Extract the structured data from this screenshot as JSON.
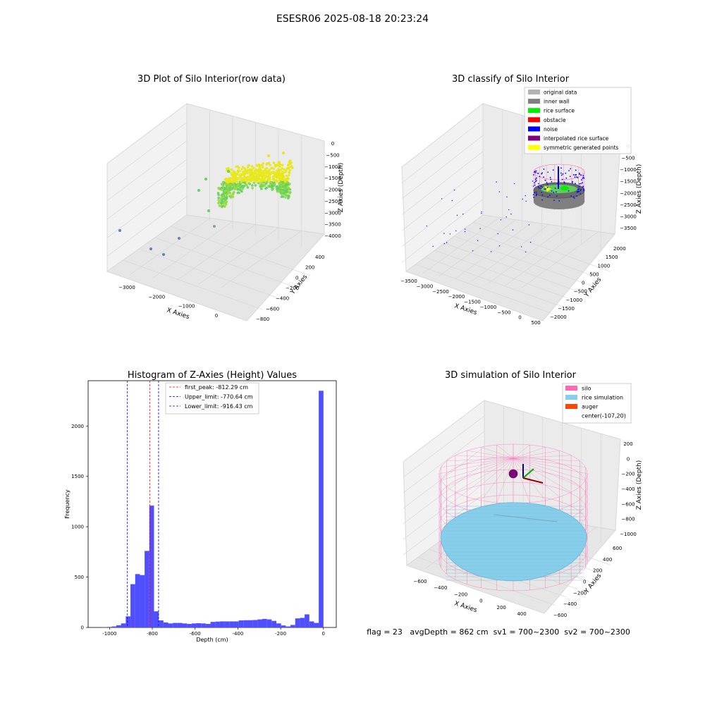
{
  "figure_title": "ESESR06 2025-08-18 20:23:24",
  "colors": {
    "hist_bar": "#4f4fff",
    "first_peak_line": "#ff0000",
    "limit_line": "#0000cc",
    "pane": "#f2f2f2",
    "grid": "#d4d4d4",
    "raw_yellow": "#e8e81a",
    "raw_green": "#5ed35e",
    "raw_blue": "#6a7bb8",
    "wall_gray": "#808080",
    "rice_green": "#00ee00",
    "noise_blue": "#0000ff",
    "silo_pink": "#ff69b4",
    "rice_sim": "#87ceeb",
    "auger": "#ff4500",
    "purple": "#800080",
    "yellow": "#ffff00",
    "light_gray": "#b3b3b3"
  },
  "chart_data": [
    {
      "type": "scatter",
      "projection": "3d",
      "title": "3D Plot of Silo Interior(row data)",
      "xlabel": "X Axies",
      "ylabel": "Y Axies",
      "zlabel": "Z Axies (Depth)",
      "x_ticks": [
        "−3000",
        "−2000",
        "−1000",
        "0"
      ],
      "y_ticks": [
        "400",
        "200",
        "0",
        "−200",
        "−400",
        "−600",
        "−800"
      ],
      "z_ticks": [
        "0",
        "−500",
        "−1000",
        "−1500",
        "−2000",
        "−2500",
        "−3000",
        "−3500",
        "−4000"
      ],
      "description_points": "dense point cloud colored by depth (yellow-green) with sparse outlier points",
      "grid": true
    },
    {
      "type": "scatter",
      "projection": "3d",
      "title": "3D classify of Silo Interior",
      "xlabel": "X Axies",
      "ylabel": "Y Axies",
      "zlabel": "Z Axies (Depth)",
      "x_ticks": [
        "−3500",
        "−3000",
        "−2500",
        "−2000",
        "−1500",
        "−1000",
        "−500",
        "0",
        "500"
      ],
      "y_ticks": [
        "2000",
        "1500",
        "1000",
        "500",
        "0",
        "−500",
        "−1000",
        "−1500",
        "−2000"
      ],
      "z_ticks": [
        "0",
        "−500",
        "−1000",
        "−1500",
        "−2000",
        "−2500",
        "−3000",
        "−3500"
      ],
      "legend": [
        "original data",
        "inner wall",
        "rice surface",
        "obstacle",
        "noise",
        "interpolated rice surface",
        "symmetric generated points"
      ],
      "legend_colors": [
        "#b3b3b3",
        "#808080",
        "#00ee00",
        "#ff0000",
        "#0000ff",
        "#800080",
        "#ffff00"
      ],
      "legend_position": "top-right",
      "grid": true
    },
    {
      "type": "bar",
      "title": "Histogram of Z-Axies (Height) Values",
      "xlabel": "Depth (cm)",
      "ylabel": "Frequency",
      "xlim": [
        -1100,
        60
      ],
      "ylim": [
        0,
        2450
      ],
      "x_ticks": [
        -1000,
        -800,
        -600,
        -400,
        -200,
        0
      ],
      "y_ticks": [
        0,
        500,
        1000,
        1500,
        2000
      ],
      "bin_width": 22,
      "bin_start": -1034,
      "values": [
        2,
        5,
        10,
        22,
        40,
        110,
        430,
        530,
        520,
        760,
        1210,
        160,
        70,
        50,
        40,
        45,
        45,
        40,
        35,
        40,
        42,
        40,
        35,
        55,
        58,
        60,
        60,
        60,
        60,
        70,
        72,
        72,
        74,
        80,
        85,
        80,
        65,
        40,
        20,
        10,
        25,
        90,
        95,
        130,
        60,
        45,
        2350
      ],
      "vlines": [
        {
          "label": "first_peak: -812.29 cm",
          "x": -812.29,
          "color": "#ff0000"
        },
        {
          "label": "Upper_limit: -770.64 cm",
          "x": -770.64,
          "color": "#0000cc"
        },
        {
          "label": "Lower_limit: -916.43 cm",
          "x": -916.43,
          "color": "#0000cc"
        }
      ],
      "legend_position": "top-center",
      "grid": false
    },
    {
      "type": "surface",
      "projection": "3d",
      "title": "3D simulation of Silo Interior",
      "xlabel": "X Axies",
      "ylabel": "Y Axies",
      "zlabel": "Z Axies (Depth)",
      "x_ticks": [
        "−600",
        "−400",
        "−200",
        "0",
        "200",
        "400"
      ],
      "y_ticks": [
        "600",
        "400",
        "200",
        "0",
        "−200",
        "−400",
        "−600"
      ],
      "z_ticks": [
        "200",
        "0",
        "−200",
        "−400",
        "−600",
        "−800",
        "−1000"
      ],
      "legend": [
        "silo",
        "rice simulation",
        "auger",
        "center(-107,20)"
      ],
      "legend_colors": [
        "#ff69b4",
        "#87ceeb",
        "#ff4500",
        ""
      ],
      "legend_position": "top-right",
      "grid": true
    }
  ],
  "status_line": "flag = 23   avgDepth = 862 cm  sv1 = 700~2300  sv2 = 700~2300"
}
